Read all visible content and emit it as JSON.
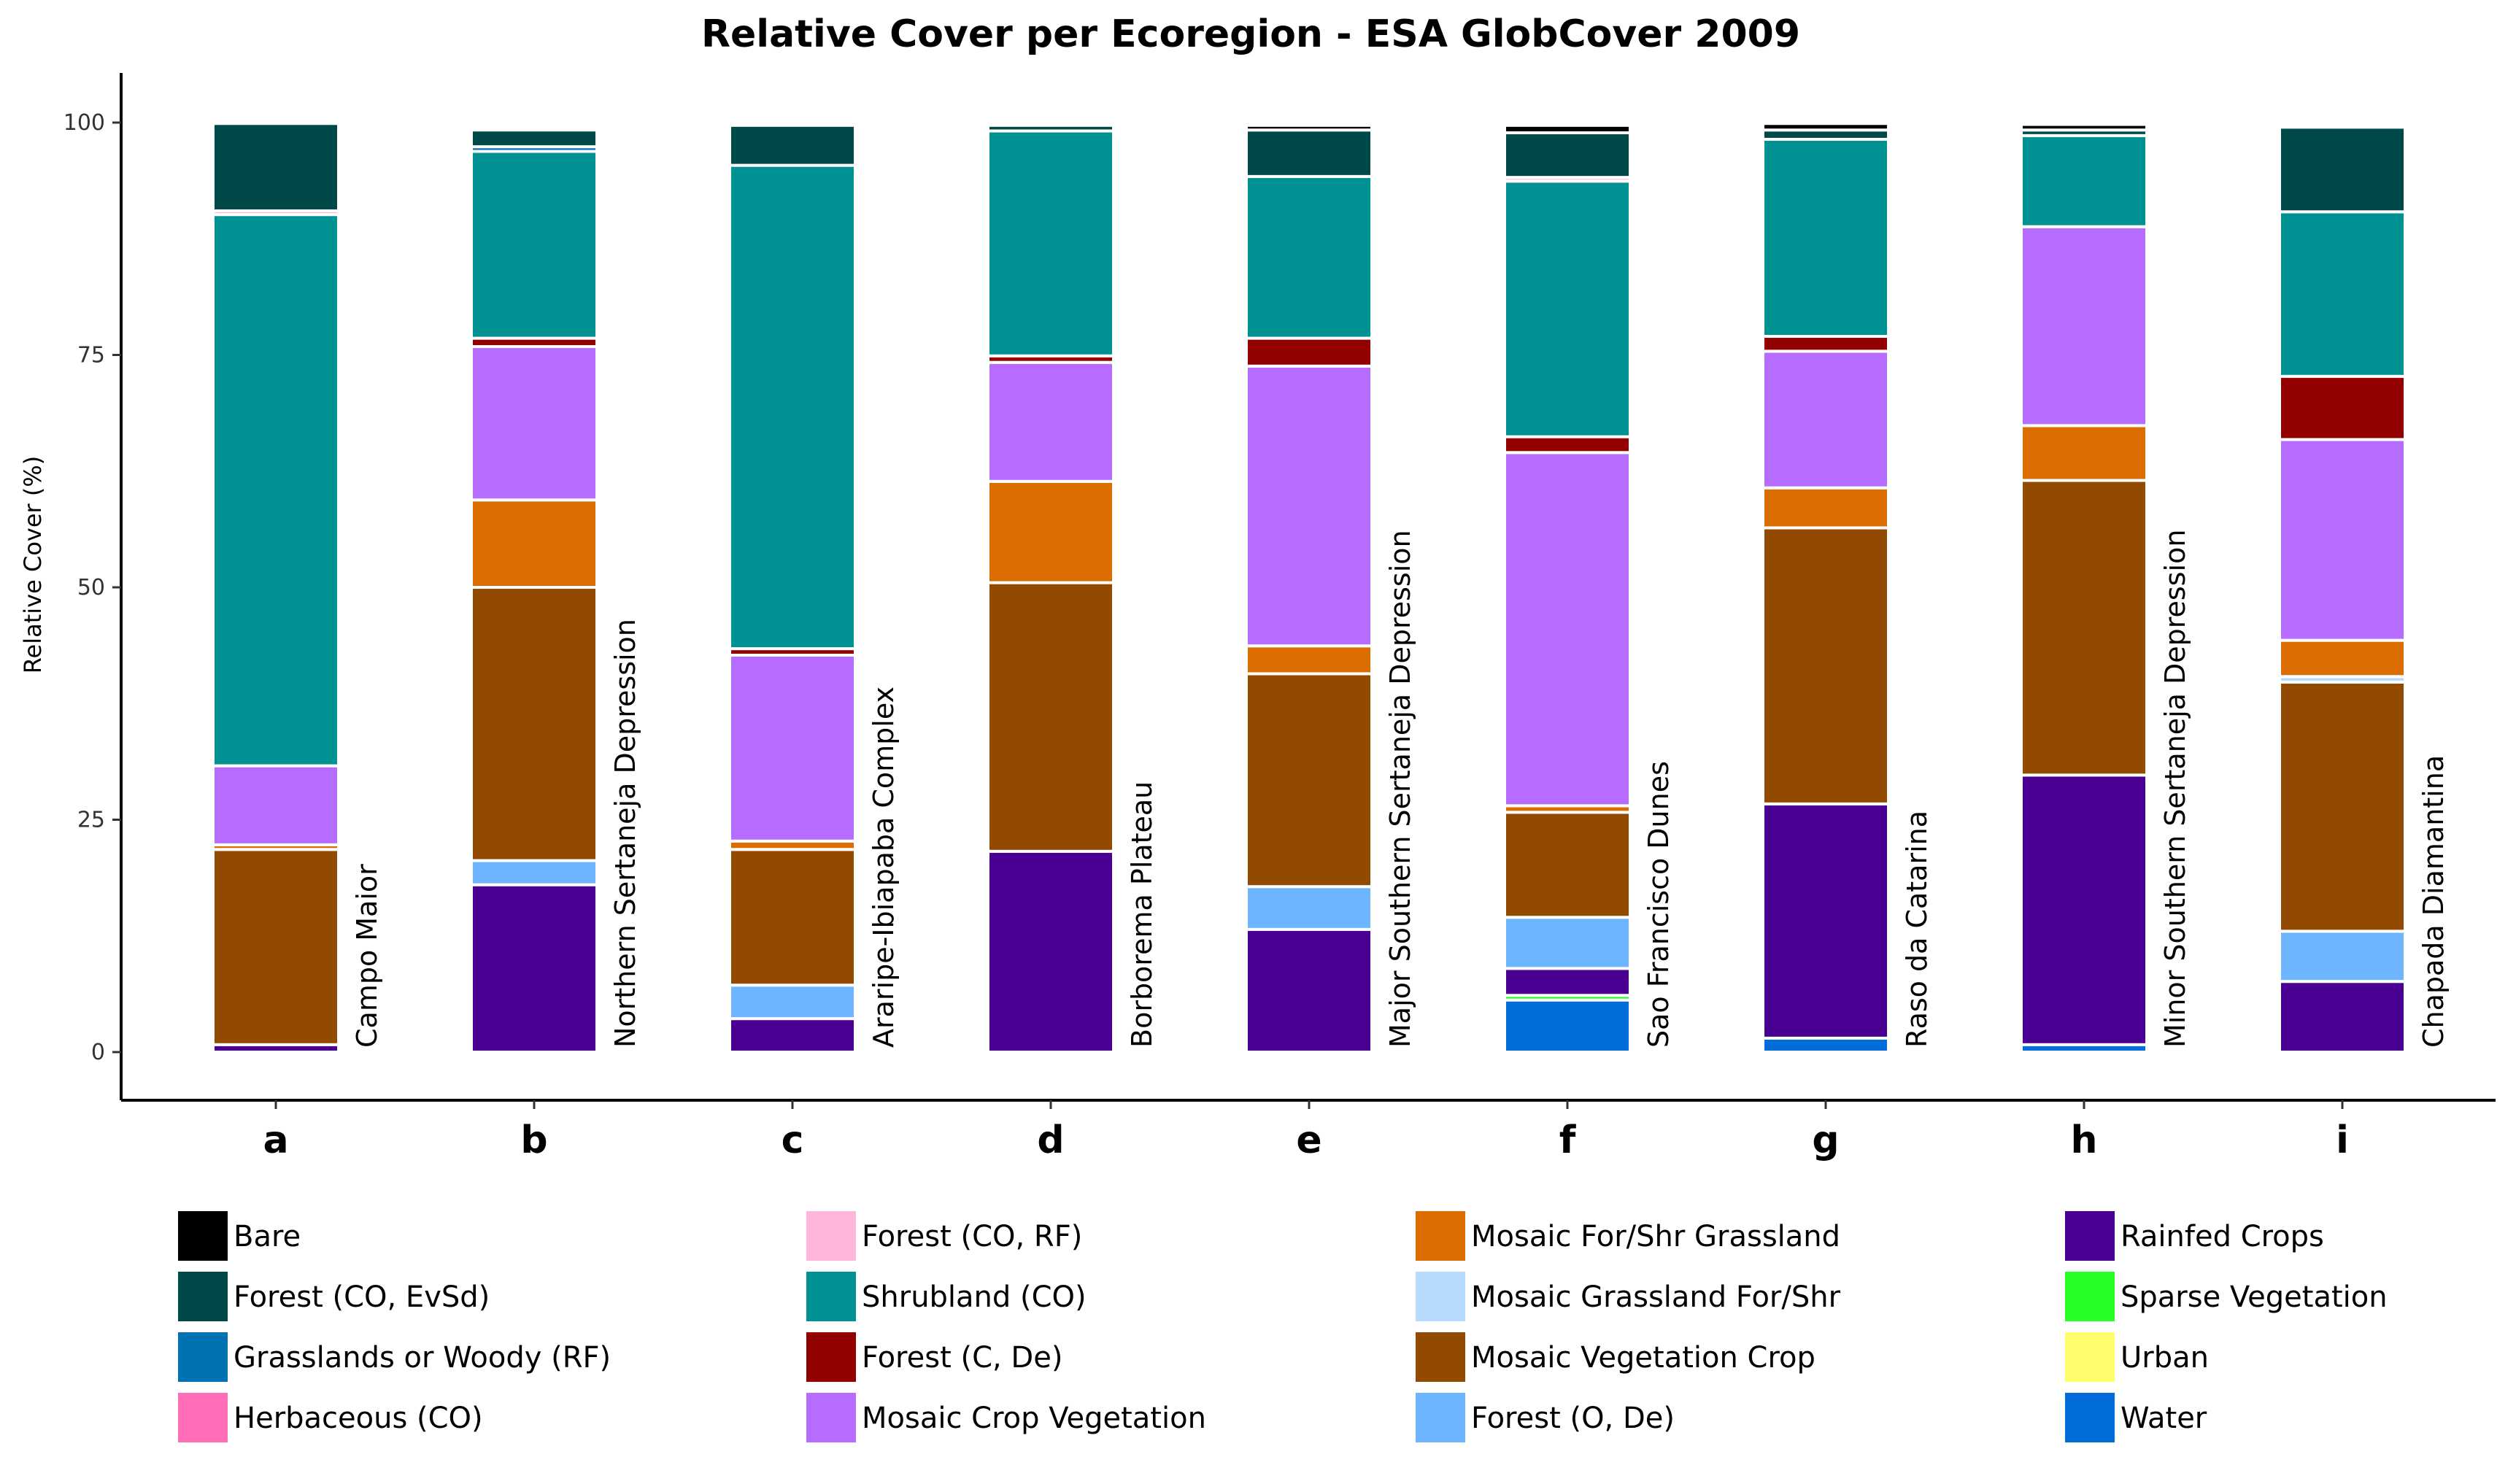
{
  "chart_data": {
    "type": "bar",
    "stacked": true,
    "title": "Relative Cover per Ecoregion - ESA GlobCover 2009",
    "xlabel": "",
    "ylabel": "Relative Cover (%)",
    "ylim": [
      0,
      100
    ],
    "yticks": [
      0,
      25,
      50,
      75,
      100
    ],
    "grid": false,
    "legend_position": "bottom",
    "categories": [
      "a",
      "b",
      "c",
      "d",
      "e",
      "f",
      "g",
      "h",
      "i"
    ],
    "bar_labels": [
      "Campo Maior",
      "Northern Sertaneja Depression",
      "Araripe-Ibiapaba Complex",
      "Borborema Plateau",
      "Major Southern Sertaneja Depression",
      "Sao Francisco Dunes",
      "Raso da Catarina",
      "Minor Southern Sertaneja Depression",
      "Chapada Diamantina"
    ],
    "legend": [
      {
        "name": "Bare",
        "color": "#000000"
      },
      {
        "name": "Forest (CO, EvSd)",
        "color": "#004949"
      },
      {
        "name": "Grasslands or Woody (RF)",
        "color": "#0072b2"
      },
      {
        "name": "Herbaceous (CO)",
        "color": "#ff6db6"
      },
      {
        "name": "Forest (CO, RF)",
        "color": "#ffb6db"
      },
      {
        "name": "Shrubland (CO)",
        "color": "#009292"
      },
      {
        "name": "Forest (C, De)",
        "color": "#920000"
      },
      {
        "name": "Mosaic Crop Vegetation",
        "color": "#b66dff"
      },
      {
        "name": "Mosaic For/Shr Grassland",
        "color": "#db6d00"
      },
      {
        "name": "Mosaic Grassland For/Shr",
        "color": "#b6dbff"
      },
      {
        "name": "Mosaic Vegetation Crop",
        "color": "#924900"
      },
      {
        "name": "Forest (O, De)",
        "color": "#6db6ff"
      },
      {
        "name": "Rainfed Crops",
        "color": "#490092"
      },
      {
        "name": "Sparse Vegetation",
        "color": "#24ff24"
      },
      {
        "name": "Urban",
        "color": "#ffff6d"
      },
      {
        "name": "Water",
        "color": "#006ddb"
      }
    ],
    "stack_order_bottom_to_top": [
      "Water",
      "Urban",
      "Sparse Vegetation",
      "Rainfed Crops",
      "Forest (O, De)",
      "Mosaic Vegetation Crop",
      "Mosaic Grassland For/Shr",
      "Mosaic For/Shr Grassland",
      "Mosaic Crop Vegetation",
      "Forest (C, De)",
      "Shrubland (CO)",
      "Forest (CO, RF)",
      "Herbaceous (CO)",
      "Grasslands or Woody (RF)",
      "Forest (CO, EvSd)",
      "Bare"
    ],
    "series": [
      {
        "name": "Water",
        "values": [
          0,
          0,
          0,
          0,
          0,
          5.6,
          1.5,
          0.8,
          0
        ]
      },
      {
        "name": "Urban",
        "values": [
          0,
          0,
          0,
          0,
          0,
          0,
          0,
          0,
          0
        ]
      },
      {
        "name": "Sparse Vegetation",
        "values": [
          0,
          0,
          0,
          0,
          0,
          0.5,
          0,
          0,
          0
        ]
      },
      {
        "name": "Rainfed Crops",
        "values": [
          0.8,
          18.0,
          3.6,
          21.6,
          13.2,
          2.9,
          25.2,
          29.0,
          7.6
        ]
      },
      {
        "name": "Forest (O, De)",
        "values": [
          0,
          2.6,
          3.6,
          0,
          4.6,
          5.5,
          0,
          0,
          5.4
        ]
      },
      {
        "name": "Mosaic Vegetation Crop",
        "values": [
          21.0,
          29.4,
          14.6,
          28.9,
          22.9,
          11.3,
          29.7,
          31.7,
          26.8
        ]
      },
      {
        "name": "Mosaic Grassland For/Shr",
        "values": [
          0,
          0,
          0,
          0,
          0,
          0,
          0,
          0,
          0.6
        ]
      },
      {
        "name": "Mosaic For/Shr Grassland",
        "values": [
          0.5,
          9.4,
          0.9,
          10.9,
          3.0,
          0.7,
          4.3,
          5.9,
          3.9
        ]
      },
      {
        "name": "Mosaic Crop Vegetation",
        "values": [
          8.5,
          16.5,
          20.0,
          12.8,
          30.1,
          38.0,
          14.7,
          21.4,
          21.6
        ]
      },
      {
        "name": "Forest (C, De)",
        "values": [
          0,
          0.9,
          0.7,
          0.7,
          3.0,
          1.7,
          1.6,
          0,
          6.8
        ]
      },
      {
        "name": "Shrubland (CO)",
        "values": [
          59.3,
          20.1,
          52.0,
          24.2,
          17.4,
          27.5,
          21.2,
          9.8,
          17.7
        ]
      },
      {
        "name": "Forest (CO, RF)",
        "values": [
          0.4,
          0,
          0,
          0,
          0,
          0.4,
          0,
          0,
          0
        ]
      },
      {
        "name": "Herbaceous (CO)",
        "values": [
          0,
          0,
          0,
          0,
          0,
          0,
          0,
          0,
          0
        ]
      },
      {
        "name": "Grasslands or Woody (RF)",
        "values": [
          0,
          0.5,
          0,
          0,
          0,
          0,
          0,
          0,
          0
        ]
      },
      {
        "name": "Forest (CO, EvSd)",
        "values": [
          9.4,
          1.8,
          4.3,
          0.6,
          5.0,
          4.8,
          1.0,
          0.6,
          9.1
        ]
      },
      {
        "name": "Bare",
        "values": [
          0,
          0,
          0,
          0,
          0.5,
          0.8,
          0.7,
          0.6,
          0
        ]
      }
    ]
  }
}
